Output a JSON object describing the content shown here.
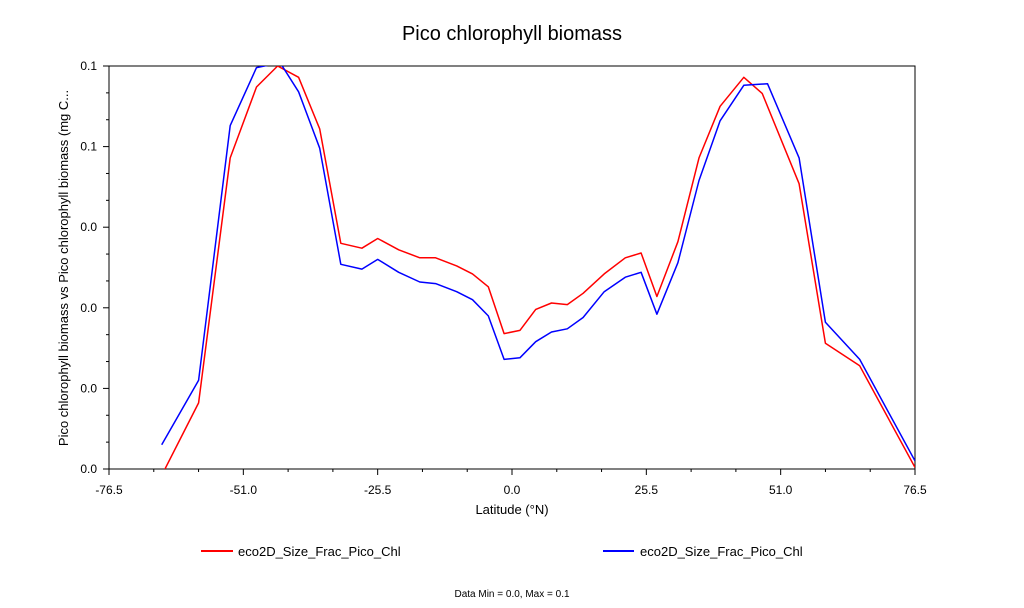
{
  "chart_data": {
    "type": "line",
    "title": "Pico chlorophyll biomass",
    "xlabel": "Latitude (°N)",
    "ylabel": "Pico chlorophyll biomass vs Pico chlorophyll biomass (mg C...",
    "xlim": [
      -76.5,
      76.5
    ],
    "ylim": [
      0.0,
      0.125
    ],
    "x_ticks": [
      -76.5,
      -51.0,
      -25.5,
      0.0,
      25.5,
      51.0,
      76.5
    ],
    "x_tick_labels": [
      "-76.5",
      "-51.0",
      "-25.5",
      "0.0",
      "25.5",
      "51.0",
      "76.5"
    ],
    "y_ticks": [
      0.0,
      0.025,
      0.05,
      0.075,
      0.1,
      0.125
    ],
    "y_tick_labels": [
      "0.0",
      "0.0",
      "0.0",
      "0.0",
      "0.1",
      "0.1"
    ],
    "grid": false,
    "legend_position": "bottom",
    "series": [
      {
        "name": "eco2D_Size_Frac_Pico_Chl",
        "color": "#ff0000",
        "x": [
          -66.5,
          -59.5,
          -53.5,
          -48.5,
          -44.5,
          -40.5,
          -36.5,
          -32.5,
          -28.5,
          -25.5,
          -21.5,
          -17.5,
          -14.5,
          -10.5,
          -7.5,
          -4.5,
          -1.5,
          1.5,
          4.5,
          7.5,
          10.5,
          13.5,
          17.5,
          21.5,
          24.5,
          27.5,
          31.5,
          35.5,
          39.5,
          44.0,
          47.5,
          54.5,
          59.5,
          66.0,
          76.5
        ],
        "y": [
          -0.002,
          0.0205,
          0.0965,
          0.1185,
          0.125,
          0.1215,
          0.1055,
          0.07,
          0.0685,
          0.0715,
          0.068,
          0.0655,
          0.0655,
          0.063,
          0.0605,
          0.0565,
          0.042,
          0.043,
          0.0495,
          0.0515,
          0.051,
          0.0545,
          0.0605,
          0.0655,
          0.067,
          0.0535,
          0.0705,
          0.0965,
          0.1125,
          0.1215,
          0.1165,
          0.0885,
          0.039,
          0.032,
          0.0005
        ]
      },
      {
        "name": "eco2D_Size_Frac_Pico_Chl",
        "color": "#0000ff",
        "x": [
          -66.5,
          -59.5,
          -53.5,
          -48.5,
          -44.0,
          -40.5,
          -36.5,
          -32.5,
          -28.5,
          -25.5,
          -21.5,
          -17.5,
          -14.5,
          -10.5,
          -7.5,
          -4.5,
          -1.5,
          1.5,
          4.5,
          7.5,
          10.5,
          13.5,
          17.5,
          21.5,
          24.5,
          27.5,
          31.5,
          35.5,
          39.5,
          44.0,
          48.5,
          54.5,
          59.5,
          66.0,
          76.5
        ],
        "y": [
          0.0075,
          0.0275,
          0.1065,
          0.1245,
          0.126,
          0.117,
          0.0995,
          0.0635,
          0.062,
          0.065,
          0.061,
          0.058,
          0.0575,
          0.055,
          0.0525,
          0.0475,
          0.034,
          0.0345,
          0.0395,
          0.0425,
          0.0435,
          0.047,
          0.055,
          0.0595,
          0.061,
          0.048,
          0.064,
          0.0895,
          0.108,
          0.119,
          0.1195,
          0.0965,
          0.0455,
          0.034,
          0.0025
        ]
      }
    ],
    "footer": "Data Min = 0.0, Max = 0.1"
  }
}
